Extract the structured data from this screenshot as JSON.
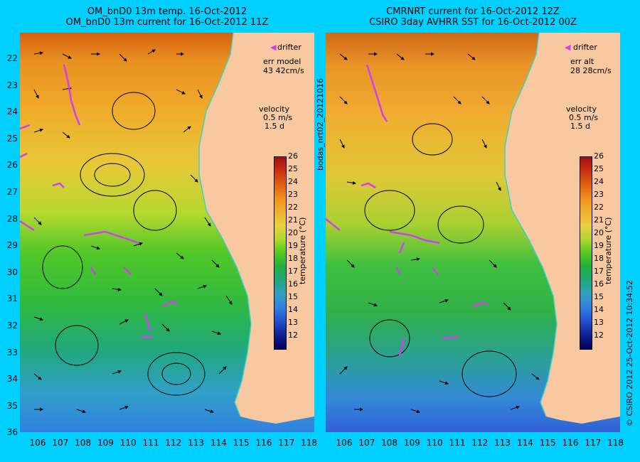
{
  "left_panel": {
    "title_line1": "OM_bnD0 13m temp. 16-Oct-2012",
    "title_line2": "OM_bnD0 13m current for 16-Oct-2012 11Z",
    "legend_drifter": "drifter",
    "err_label": "err model",
    "err_value": "43 42cm/s",
    "velocity_label": "velocity",
    "velocity_scale": "0.5 m/s",
    "velocity_time": "1.5 d",
    "colorbar_title": "temperature (°C)"
  },
  "right_panel": {
    "title_line1": "CMRNRT current for 16-Oct-2012 12Z",
    "title_line2": "CSIRO 3day AVHRR SST for 16-Oct-2012 00Z",
    "legend_drifter": "drifter",
    "err_label": "err alt",
    "err_value": "28 28cm/s",
    "velocity_label": "velocity",
    "velocity_scale": "0.5 m/s",
    "velocity_time": "1.5 d",
    "colorbar_title": "temperature (°C)"
  },
  "side_label": "bodas_nrt02_20121016",
  "credit": "© CSIRO 2012   25-Oct-2012 10:34:52",
  "axes": {
    "y_ticks": [
      "22",
      "23",
      "24",
      "25",
      "26",
      "27",
      "28",
      "29",
      "30",
      "31",
      "32",
      "33",
      "34",
      "35",
      "36"
    ],
    "x_ticks": [
      "106",
      "107",
      "108",
      "109",
      "110",
      "111",
      "112",
      "113",
      "114",
      "115",
      "116",
      "117",
      "118"
    ]
  },
  "colorbar": {
    "ticks": [
      "26",
      "25",
      "24",
      "23",
      "22",
      "21",
      "20",
      "19",
      "18",
      "17",
      "16",
      "15",
      "14",
      "13",
      "12"
    ],
    "colors": [
      "#a01010",
      "#c83010",
      "#e06010",
      "#f09020",
      "#f0b030",
      "#e8d040",
      "#b0d830",
      "#50c820",
      "#20b040",
      "#20a880",
      "#30a0c0",
      "#3080e0",
      "#2050d0",
      "#102090",
      "#000060"
    ]
  },
  "colors": {
    "background": "#00d0ff",
    "land": "#f8c8a0",
    "coastline": "#40d0c0",
    "drifter": "#d040f0"
  }
}
